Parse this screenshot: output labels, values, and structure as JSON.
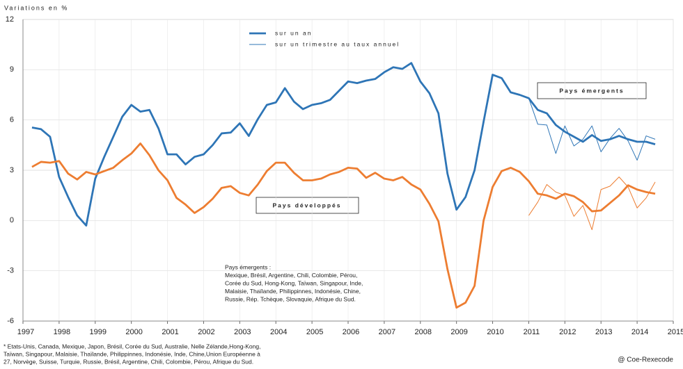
{
  "chart_data": {
    "type": "line",
    "y_axis_label": "Variations en %",
    "x": [
      1997.25,
      1997.5,
      1997.75,
      1998,
      1998.25,
      1998.5,
      1998.75,
      1999,
      1999.25,
      1999.5,
      1999.75,
      2000,
      2000.25,
      2000.5,
      2000.75,
      2001,
      2001.25,
      2001.5,
      2001.75,
      2002,
      2002.25,
      2002.5,
      2002.75,
      2003,
      2003.25,
      2003.5,
      2003.75,
      2004,
      2004.25,
      2004.5,
      2004.75,
      2005,
      2005.25,
      2005.5,
      2005.75,
      2006,
      2006.25,
      2006.5,
      2006.75,
      2007,
      2007.25,
      2007.5,
      2007.75,
      2008,
      2008.25,
      2008.5,
      2008.75,
      2009,
      2009.25,
      2009.5,
      2009.75,
      2010,
      2010.25,
      2010.5,
      2010.75,
      2011,
      2011.25,
      2011.5,
      2011.75,
      2012,
      2012.25,
      2012.5,
      2012.75,
      2013,
      2013.25,
      2013.5,
      2013.75,
      2014,
      2014.25,
      2014.5
    ],
    "xlim": [
      1997,
      2015
    ],
    "xticks": [
      1997,
      1998,
      1999,
      2000,
      2001,
      2002,
      2003,
      2004,
      2005,
      2006,
      2007,
      2008,
      2009,
      2010,
      2011,
      2012,
      2013,
      2014,
      2015
    ],
    "ylim": [
      -6,
      12
    ],
    "yticks": [
      -6,
      -3,
      0,
      3,
      6,
      9,
      12
    ],
    "grid": true,
    "series": [
      {
        "name": "sur un an",
        "color": "#2e75b6",
        "width": 2.8,
        "values": [
          5.55,
          5.45,
          5.0,
          2.6,
          1.4,
          0.3,
          -0.3,
          2.5,
          3.8,
          5.0,
          6.2,
          6.9,
          6.5,
          6.6,
          5.5,
          3.95,
          3.95,
          3.35,
          3.8,
          3.95,
          4.5,
          5.2,
          5.25,
          5.8,
          5.05,
          6.05,
          6.9,
          7.05,
          7.9,
          7.1,
          6.65,
          6.9,
          7.0,
          7.2,
          7.75,
          8.3,
          8.2,
          8.35,
          8.45,
          8.85,
          9.15,
          9.05,
          9.4,
          8.3,
          7.6,
          6.4,
          2.8,
          0.65,
          1.4,
          3.0,
          5.9,
          8.7,
          8.5,
          7.65,
          7.5,
          7.3,
          6.6,
          6.4,
          5.7,
          5.3,
          5.0,
          4.7,
          5.1,
          4.75,
          4.85,
          5.05,
          4.85,
          4.7,
          4.7,
          4.55
        ]
      },
      {
        "name": "sur un trimestre au taux annuel",
        "color": "#2e75b6",
        "width": 1,
        "values": [
          null,
          null,
          null,
          null,
          null,
          null,
          null,
          null,
          null,
          null,
          null,
          null,
          null,
          null,
          null,
          null,
          null,
          null,
          null,
          null,
          null,
          null,
          null,
          null,
          null,
          null,
          null,
          null,
          null,
          null,
          null,
          null,
          null,
          null,
          null,
          null,
          null,
          null,
          null,
          null,
          null,
          null,
          null,
          null,
          null,
          null,
          null,
          null,
          null,
          null,
          null,
          null,
          null,
          null,
          null,
          7.3,
          5.75,
          5.7,
          4.0,
          5.65,
          4.45,
          4.85,
          5.65,
          4.1,
          4.9,
          5.5,
          4.75,
          3.6,
          5.05,
          4.85
        ]
      },
      {
        "color": "#ed7d31",
        "width": 2.8,
        "values": [
          3.2,
          3.5,
          3.45,
          3.55,
          2.8,
          2.45,
          2.9,
          2.75,
          2.95,
          3.15,
          3.6,
          4.0,
          4.6,
          3.9,
          3.0,
          2.4,
          1.35,
          0.95,
          0.45,
          0.8,
          1.3,
          1.95,
          2.05,
          1.65,
          1.5,
          2.15,
          2.95,
          3.45,
          3.45,
          2.85,
          2.4,
          2.4,
          2.5,
          2.75,
          2.9,
          3.15,
          3.1,
          2.55,
          2.85,
          2.5,
          2.4,
          2.6,
          2.15,
          1.85,
          1.0,
          -0.05,
          -2.9,
          -5.2,
          -4.9,
          -3.9,
          0.0,
          2.0,
          2.95,
          3.15,
          2.9,
          2.35,
          1.6,
          1.5,
          1.3,
          1.6,
          1.45,
          1.1,
          0.55,
          0.6,
          1.05,
          1.5,
          2.1,
          1.85,
          1.7,
          1.6
        ]
      },
      {
        "color": "#ed7d31",
        "width": 1,
        "values": [
          null,
          null,
          null,
          null,
          null,
          null,
          null,
          null,
          null,
          null,
          null,
          null,
          null,
          null,
          null,
          null,
          null,
          null,
          null,
          null,
          null,
          null,
          null,
          null,
          null,
          null,
          null,
          null,
          null,
          null,
          null,
          null,
          null,
          null,
          null,
          null,
          null,
          null,
          null,
          null,
          null,
          null,
          null,
          null,
          null,
          null,
          null,
          null,
          null,
          null,
          null,
          null,
          null,
          null,
          null,
          0.3,
          1.1,
          2.15,
          1.7,
          1.5,
          0.25,
          0.9,
          -0.55,
          1.85,
          2.05,
          2.6,
          2.0,
          0.75,
          1.35,
          2.3
        ]
      }
    ],
    "annotations": [
      {
        "text": "Pays émergents",
        "color": "#2e3a8c"
      },
      {
        "text": "Pays développés",
        "color": "#ed7d31"
      }
    ],
    "note": [
      "Pays émergents :",
      "Mexique, Brésil, Argentine, Chili, Colombie, Pérou,",
      "Corée du Sud, Hong-Kong, Taïwan, Singapour, Inde,",
      "Malaisie, Thaïlande, Philippinnes, Indonésie, Chine,",
      "Russie, Rép. Tchèque, Slovaquie, Afrique du Sud."
    ]
  },
  "footnote": [
    "* Etats-Unis, Canada, Mexique, Japon, Brésil, Corée du Sud, Australie, Nelle Zélande,Hong-Kong,",
    "Taïwan, Singapour, Malaisie, Thaïlande, Philippinnes, Indonésie, Inde, Chine,Union Européenne à",
    "27, Norvège, Suisse, Turquie, Russie, Brésil, Argentine, Chili, Colombie, Pérou, Afrique du Sud."
  ],
  "credit": "@ Coe-Rexecode"
}
